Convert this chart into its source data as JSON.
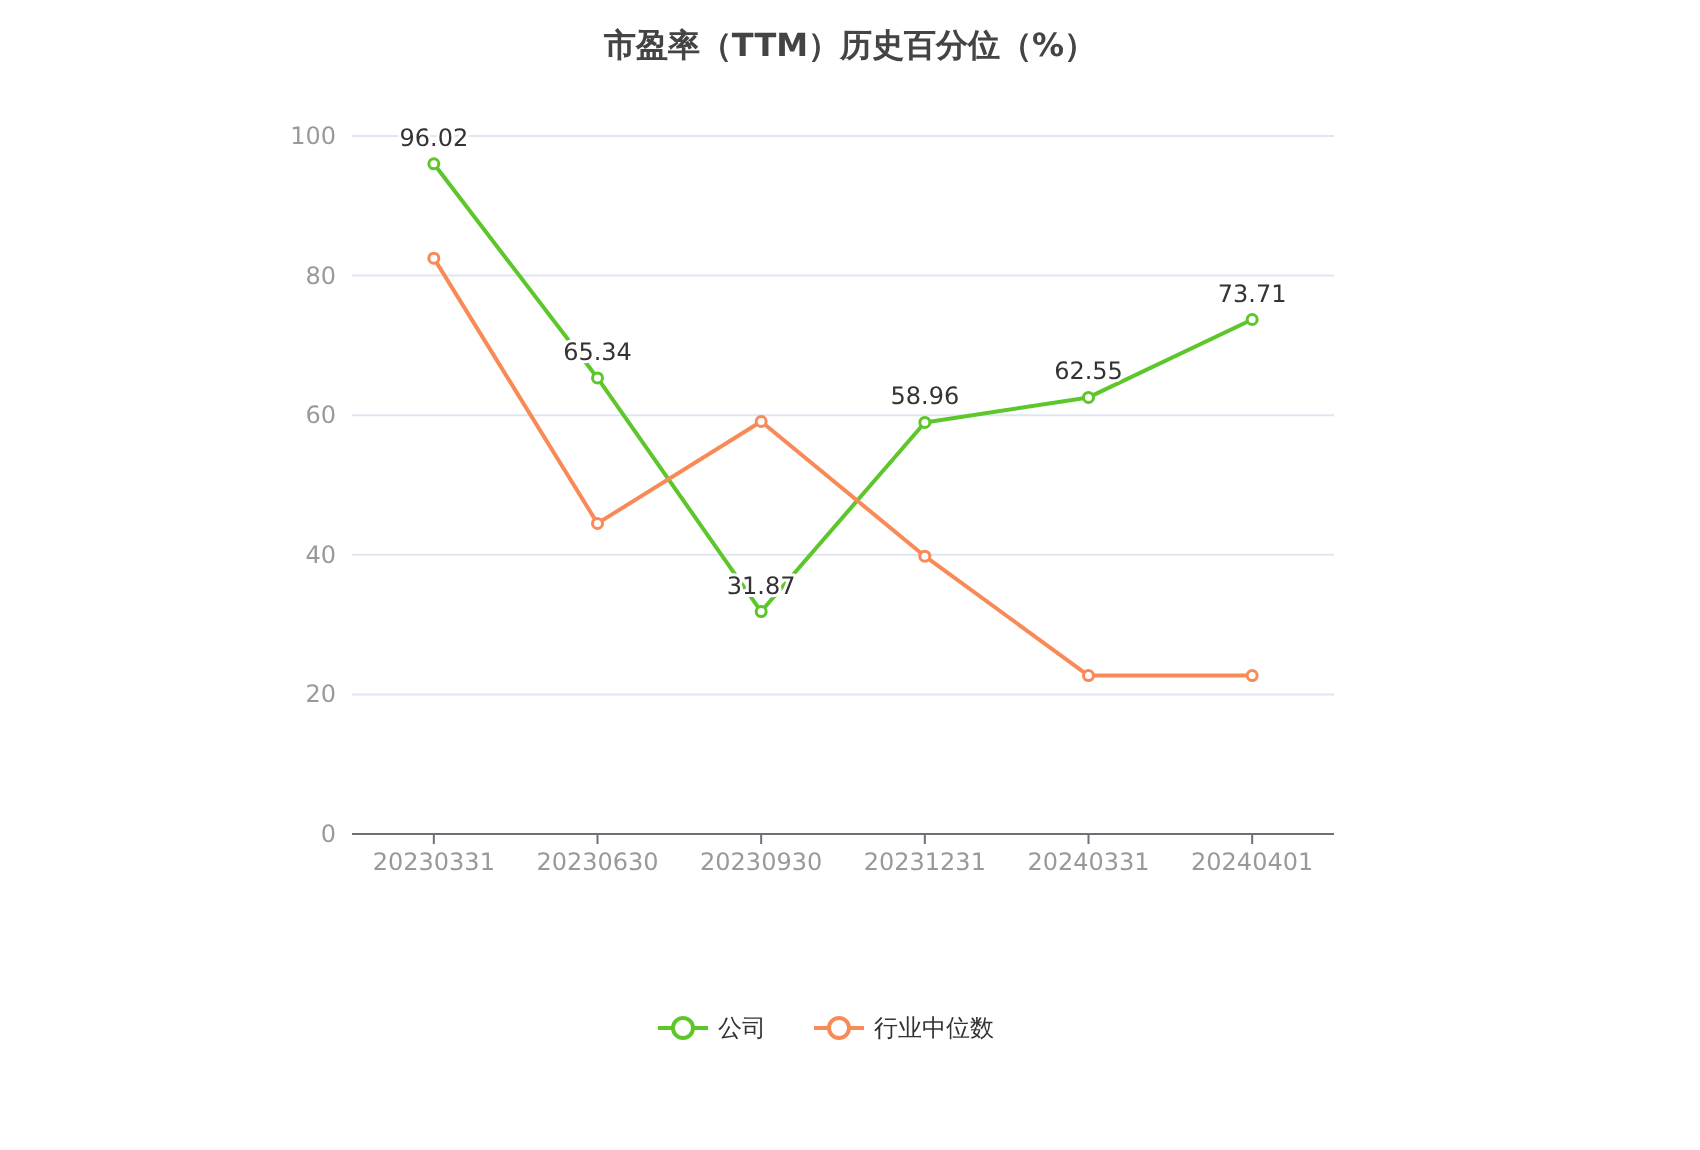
{
  "chart_data": {
    "type": "line",
    "title": "市盈率（TTM）历史百分位（%）",
    "categories": [
      "20230331",
      "20230630",
      "20230930",
      "20231231",
      "20240331",
      "20240401"
    ],
    "series": [
      {
        "name": "公司",
        "color": "#5cc62a",
        "values": [
          96.02,
          65.34,
          31.87,
          58.96,
          62.55,
          73.71
        ],
        "value_labels": [
          "96.02",
          "65.34",
          "31.87",
          "58.96",
          "62.55",
          "73.71"
        ]
      },
      {
        "name": "行业中位数",
        "color": "#f88a58",
        "values": [
          82.5,
          44.5,
          59.1,
          39.8,
          22.7,
          22.7
        ]
      }
    ],
    "ylim": [
      0,
      100
    ],
    "yticks": [
      0,
      20,
      40,
      60,
      80,
      100
    ],
    "grid": "y",
    "legend": "bottom",
    "marker": "circle"
  }
}
